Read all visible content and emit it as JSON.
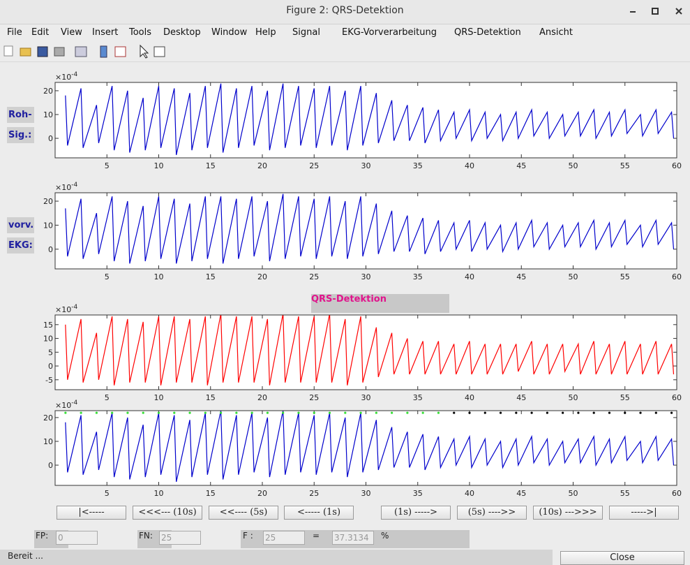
{
  "window": {
    "title": "Figure 2: QRS-Detektion"
  },
  "menu": [
    "File",
    "Edit",
    "View",
    "Insert",
    "Tools",
    "Desktop",
    "Window",
    "Help",
    "Signal",
    "EKG-Vorverarbeitung",
    "QRS-Detektion",
    "Ansicht"
  ],
  "side_labels": [
    [
      "Roh-",
      "Sig.:"
    ],
    [
      "vorv.",
      "EKG:"
    ]
  ],
  "panel_title": "QRS-Detektion",
  "chart_data": [
    {
      "type": "line",
      "color": "#0000cc",
      "multiplier": {
        "base": "×10",
        "exponent": "-4"
      },
      "xlim": [
        0,
        60
      ],
      "ylim": [
        -8.2,
        23.5
      ],
      "xticks": [
        5,
        10,
        15,
        20,
        25,
        30,
        35,
        40,
        45,
        50,
        55,
        60
      ],
      "yticks": [
        0,
        10,
        20
      ],
      "x": [
        1,
        1.2,
        2.5,
        2.7,
        4,
        4.2,
        5.5,
        5.7,
        7,
        7.2,
        8.5,
        8.7,
        10,
        10.2,
        11.5,
        11.7,
        13,
        13.2,
        14.5,
        14.7,
        16,
        16.2,
        17.5,
        17.7,
        19,
        19.2,
        20.5,
        20.7,
        22,
        22.2,
        23.5,
        23.7,
        25,
        25.2,
        26.5,
        26.7,
        28,
        28.2,
        29.5,
        29.7,
        31,
        31.2,
        32.5,
        32.7,
        34,
        34.2,
        35.5,
        35.7,
        37,
        37.2,
        38.5,
        38.7,
        40,
        40.2,
        41.5,
        41.7,
        43,
        43.2,
        44.5,
        44.7,
        46,
        46.2,
        47.5,
        47.7,
        49,
        49.2,
        50.5,
        50.7,
        52,
        52.2,
        53.5,
        53.7,
        55,
        55.2,
        56.5,
        56.7,
        58,
        58.2,
        59.5,
        59.7
      ],
      "values": [
        18,
        -3,
        21,
        -4,
        14,
        -2,
        22,
        -5,
        20,
        -6,
        17,
        -5,
        22,
        -4,
        21,
        -7,
        19,
        -5,
        22,
        -4,
        23,
        -6,
        21,
        -4,
        22,
        -3,
        20,
        -5,
        23,
        -4,
        22,
        -3,
        21,
        -4,
        22,
        -3,
        20,
        -5,
        22,
        -3,
        19,
        -2,
        16,
        -1,
        14,
        -1,
        13,
        -2,
        12,
        -1,
        11,
        0,
        12,
        -1,
        11,
        0,
        10,
        -1,
        11,
        0,
        12,
        1,
        11,
        0,
        10,
        1,
        11,
        1,
        12,
        0,
        11,
        1,
        12,
        2,
        10,
        1,
        12,
        2,
        11,
        0
      ]
    },
    {
      "type": "line",
      "color": "#0000cc",
      "multiplier": {
        "base": "×10",
        "exponent": "-4"
      },
      "xlim": [
        0,
        60
      ],
      "ylim": [
        -8.2,
        23.5
      ],
      "xticks": [
        5,
        10,
        15,
        20,
        25,
        30,
        35,
        40,
        45,
        50,
        55,
        60
      ],
      "yticks": [
        0,
        10,
        20
      ],
      "x": [
        1,
        1.2,
        2.5,
        2.7,
        4,
        4.2,
        5.5,
        5.7,
        7,
        7.2,
        8.5,
        8.7,
        10,
        10.2,
        11.5,
        11.7,
        13,
        13.2,
        14.5,
        14.7,
        16,
        16.2,
        17.5,
        17.7,
        19,
        19.2,
        20.5,
        20.7,
        22,
        22.2,
        23.5,
        23.7,
        25,
        25.2,
        26.5,
        26.7,
        28,
        28.2,
        29.5,
        29.7,
        31,
        31.2,
        32.5,
        32.7,
        34,
        34.2,
        35.5,
        35.7,
        37,
        37.2,
        38.5,
        38.7,
        40,
        40.2,
        41.5,
        41.7,
        43,
        43.2,
        44.5,
        44.7,
        46,
        46.2,
        47.5,
        47.7,
        49,
        49.2,
        50.5,
        50.7,
        52,
        52.2,
        53.5,
        53.7,
        55,
        55.2,
        56.5,
        56.7,
        58,
        58.2,
        59.5,
        59.7
      ],
      "values": [
        17,
        -3,
        21,
        -4,
        15,
        -2,
        22,
        -5,
        20,
        -6,
        18,
        -5,
        22,
        -4,
        21,
        -6,
        19,
        -5,
        22,
        -4,
        22,
        -6,
        21,
        -4,
        22,
        -3,
        20,
        -5,
        23,
        -4,
        22,
        -3,
        21,
        -4,
        22,
        -3,
        20,
        -4,
        22,
        -3,
        19,
        -2,
        16,
        -1,
        14,
        -1,
        13,
        -2,
        12,
        -1,
        11,
        0,
        12,
        -1,
        11,
        0,
        10,
        -1,
        11,
        0,
        12,
        1,
        11,
        0,
        10,
        1,
        11,
        1,
        12,
        0,
        11,
        1,
        12,
        2,
        10,
        1,
        12,
        2,
        11,
        0
      ]
    },
    {
      "type": "line",
      "color": "#ff0000",
      "multiplier": {
        "base": "×10",
        "exponent": "-4"
      },
      "xlim": [
        0,
        60
      ],
      "ylim": [
        -8.6,
        18.5
      ],
      "xticks": [
        5,
        10,
        15,
        20,
        25,
        30,
        35,
        40,
        45,
        50,
        55,
        60
      ],
      "yticks": [
        -5,
        0,
        5,
        10,
        15
      ],
      "x": [
        1,
        1.2,
        2.5,
        2.7,
        4,
        4.2,
        5.5,
        5.7,
        7,
        7.2,
        8.5,
        8.7,
        10,
        10.2,
        11.5,
        11.7,
        13,
        13.2,
        14.5,
        14.7,
        16,
        16.2,
        17.5,
        17.7,
        19,
        19.2,
        20.5,
        20.7,
        22,
        22.2,
        23.5,
        23.7,
        25,
        25.2,
        26.5,
        26.7,
        28,
        28.2,
        29.5,
        29.7,
        31,
        31.2,
        32.5,
        32.7,
        34,
        34.2,
        35.5,
        35.7,
        37,
        37.2,
        38.5,
        38.7,
        40,
        40.2,
        41.5,
        41.7,
        43,
        43.2,
        44.5,
        44.7,
        46,
        46.2,
        47.5,
        47.7,
        49,
        49.2,
        50.5,
        50.7,
        52,
        52.2,
        53.5,
        53.7,
        55,
        55.2,
        56.5,
        56.7,
        58,
        58.2,
        59.5,
        59.7
      ],
      "values": [
        15,
        -5,
        17,
        -6,
        12,
        -5,
        18,
        -7,
        17,
        -6,
        16,
        -6,
        18,
        -7,
        18,
        -6,
        17,
        -6,
        18,
        -7,
        19,
        -6,
        18,
        -6,
        18,
        -6,
        17,
        -7,
        19,
        -6,
        18,
        -6,
        18,
        -6,
        19,
        -6,
        17,
        -7,
        18,
        -6,
        14,
        -4,
        12,
        -3,
        10,
        -3,
        9,
        -3,
        9,
        -3,
        8,
        -3,
        9,
        -3,
        8,
        -3,
        8,
        -3,
        8,
        -2,
        9,
        -3,
        8,
        -3,
        8,
        -2,
        8,
        -3,
        9,
        -3,
        8,
        -3,
        9,
        -3,
        8,
        -3,
        9,
        -3,
        8,
        -3
      ]
    },
    {
      "type": "line",
      "color": "#0000cc",
      "multiplier": {
        "base": "×10",
        "exponent": "-4"
      },
      "xlim": [
        0,
        60
      ],
      "ylim": [
        -8.5,
        22.9
      ],
      "xticks": [
        5,
        10,
        15,
        20,
        25,
        30,
        35,
        40,
        45,
        50,
        55,
        60
      ],
      "yticks": [
        0,
        10,
        20
      ],
      "x": [
        1,
        1.2,
        2.5,
        2.7,
        4,
        4.2,
        5.5,
        5.7,
        7,
        7.2,
        8.5,
        8.7,
        10,
        10.2,
        11.5,
        11.7,
        13,
        13.2,
        14.5,
        14.7,
        16,
        16.2,
        17.5,
        17.7,
        19,
        19.2,
        20.5,
        20.7,
        22,
        22.2,
        23.5,
        23.7,
        25,
        25.2,
        26.5,
        26.7,
        28,
        28.2,
        29.5,
        29.7,
        31,
        31.2,
        32.5,
        32.7,
        34,
        34.2,
        35.5,
        35.7,
        37,
        37.2,
        38.5,
        38.7,
        40,
        40.2,
        41.5,
        41.7,
        43,
        43.2,
        44.5,
        44.7,
        46,
        46.2,
        47.5,
        47.7,
        49,
        49.2,
        50.5,
        50.7,
        52,
        52.2,
        53.5,
        53.7,
        55,
        55.2,
        56.5,
        56.7,
        58,
        58.2,
        59.5,
        59.7
      ],
      "values": [
        18,
        -3,
        21,
        -4,
        14,
        -2,
        22,
        -5,
        20,
        -6,
        17,
        -5,
        22,
        -4,
        21,
        -7,
        19,
        -5,
        22,
        -4,
        23,
        -6,
        21,
        -4,
        22,
        -3,
        20,
        -5,
        23,
        -4,
        22,
        -3,
        21,
        -4,
        22,
        -3,
        20,
        -5,
        22,
        -3,
        19,
        -2,
        16,
        -1,
        14,
        -1,
        13,
        -2,
        12,
        -1,
        11,
        0,
        12,
        -1,
        11,
        0,
        10,
        -1,
        11,
        0,
        12,
        1,
        11,
        0,
        10,
        1,
        11,
        1,
        12,
        0,
        11,
        1,
        12,
        2,
        10,
        1,
        12,
        2,
        11,
        0
      ],
      "markers": [
        {
          "color": "#33dd33",
          "x": [
            1,
            2.5,
            4,
            5.5,
            7,
            8.5,
            10,
            11.5,
            13,
            14.5,
            16,
            17.5,
            19,
            20.5,
            22,
            23.5,
            25,
            26.5,
            28,
            29.5,
            31,
            32.5,
            34,
            35.5,
            37
          ],
          "values": [
            22,
            22,
            22,
            22,
            22,
            22,
            22,
            22,
            22,
            22,
            22,
            22,
            22,
            22,
            22,
            22,
            22,
            22,
            22,
            22,
            22,
            22,
            22,
            22,
            22
          ]
        },
        {
          "color": "#000000",
          "x": [
            38.5,
            40,
            41.5,
            43,
            44.5,
            46,
            47.5,
            49,
            50.5,
            52,
            53.5,
            55,
            56.5,
            58,
            59.5
          ],
          "values": [
            22,
            22,
            22,
            22,
            22,
            22,
            22,
            22,
            22,
            22,
            22,
            22,
            22,
            22,
            22
          ]
        }
      ]
    }
  ],
  "nav_buttons": [
    "|<-----",
    "<<<--- (10s)",
    "<<---- (5s)",
    "<----- (1s)",
    "(1s) ----->",
    "(5s) ---->>",
    "(10s) --->>>",
    "----->|"
  ],
  "stats": {
    "fp_label": "FP:",
    "fp_value": "0",
    "fn_label": "FN:",
    "fn_value": "25",
    "f_label": "F :",
    "f_value": "25",
    "equals": "=",
    "ratio": "37.3134",
    "percent": "%"
  },
  "status": "Bereit ...",
  "close_button": "Close"
}
